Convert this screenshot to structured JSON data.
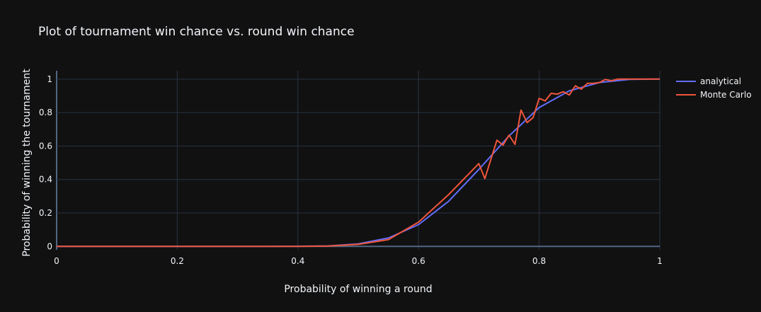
{
  "chart_data": {
    "type": "line",
    "title": "Plot of tournament win chance vs. round win chance",
    "xlabel": "Probability of winning a round",
    "ylabel": "Probability of winning the tournament",
    "xlim": [
      0,
      1
    ],
    "ylim": [
      -0.02,
      1.05
    ],
    "xticks": [
      0,
      0.2,
      0.4,
      0.6,
      0.8,
      1
    ],
    "xtick_labels": [
      "0",
      "0.2",
      "0.4",
      "0.6",
      "0.8",
      "1"
    ],
    "yticks": [
      0,
      0.2,
      0.4,
      0.6,
      0.8,
      1
    ],
    "ytick_labels": [
      "0",
      "0.2",
      "0.4",
      "0.6",
      "0.8",
      "1"
    ],
    "grid": true,
    "legend_position": "top-right",
    "series": [
      {
        "name": "analytical",
        "color": "#636efa",
        "x": [
          0,
          0.05,
          0.1,
          0.15,
          0.2,
          0.25,
          0.3,
          0.35,
          0.4,
          0.45,
          0.5,
          0.55,
          0.6,
          0.65,
          0.7,
          0.75,
          0.8,
          0.85,
          0.9,
          0.95,
          1
        ],
        "y": [
          0,
          0,
          0,
          0,
          0,
          0,
          0,
          0,
          0.001,
          0.003,
          0.015,
          0.05,
          0.13,
          0.27,
          0.46,
          0.66,
          0.83,
          0.93,
          0.98,
          0.998,
          1
        ]
      },
      {
        "name": "Monte Carlo",
        "color": "#ef553b",
        "x": [
          0,
          0.05,
          0.1,
          0.15,
          0.2,
          0.25,
          0.3,
          0.35,
          0.4,
          0.45,
          0.5,
          0.55,
          0.6,
          0.65,
          0.7,
          0.71,
          0.72,
          0.73,
          0.74,
          0.75,
          0.76,
          0.77,
          0.78,
          0.79,
          0.8,
          0.81,
          0.82,
          0.83,
          0.84,
          0.85,
          0.86,
          0.87,
          0.88,
          0.89,
          0.9,
          0.91,
          0.92,
          0.93,
          0.94,
          0.95,
          0.96,
          0.97,
          0.98,
          0.99,
          1
        ],
        "y": [
          0,
          0,
          0,
          0,
          0,
          0,
          0,
          0,
          0,
          0.002,
          0.012,
          0.04,
          0.145,
          0.31,
          0.495,
          0.405,
          0.52,
          0.635,
          0.605,
          0.665,
          0.61,
          0.815,
          0.74,
          0.77,
          0.885,
          0.87,
          0.915,
          0.91,
          0.925,
          0.905,
          0.96,
          0.94,
          0.975,
          0.975,
          0.98,
          0.998,
          0.99,
          1,
          1,
          1,
          1,
          1,
          1,
          1,
          1
        ]
      }
    ]
  }
}
